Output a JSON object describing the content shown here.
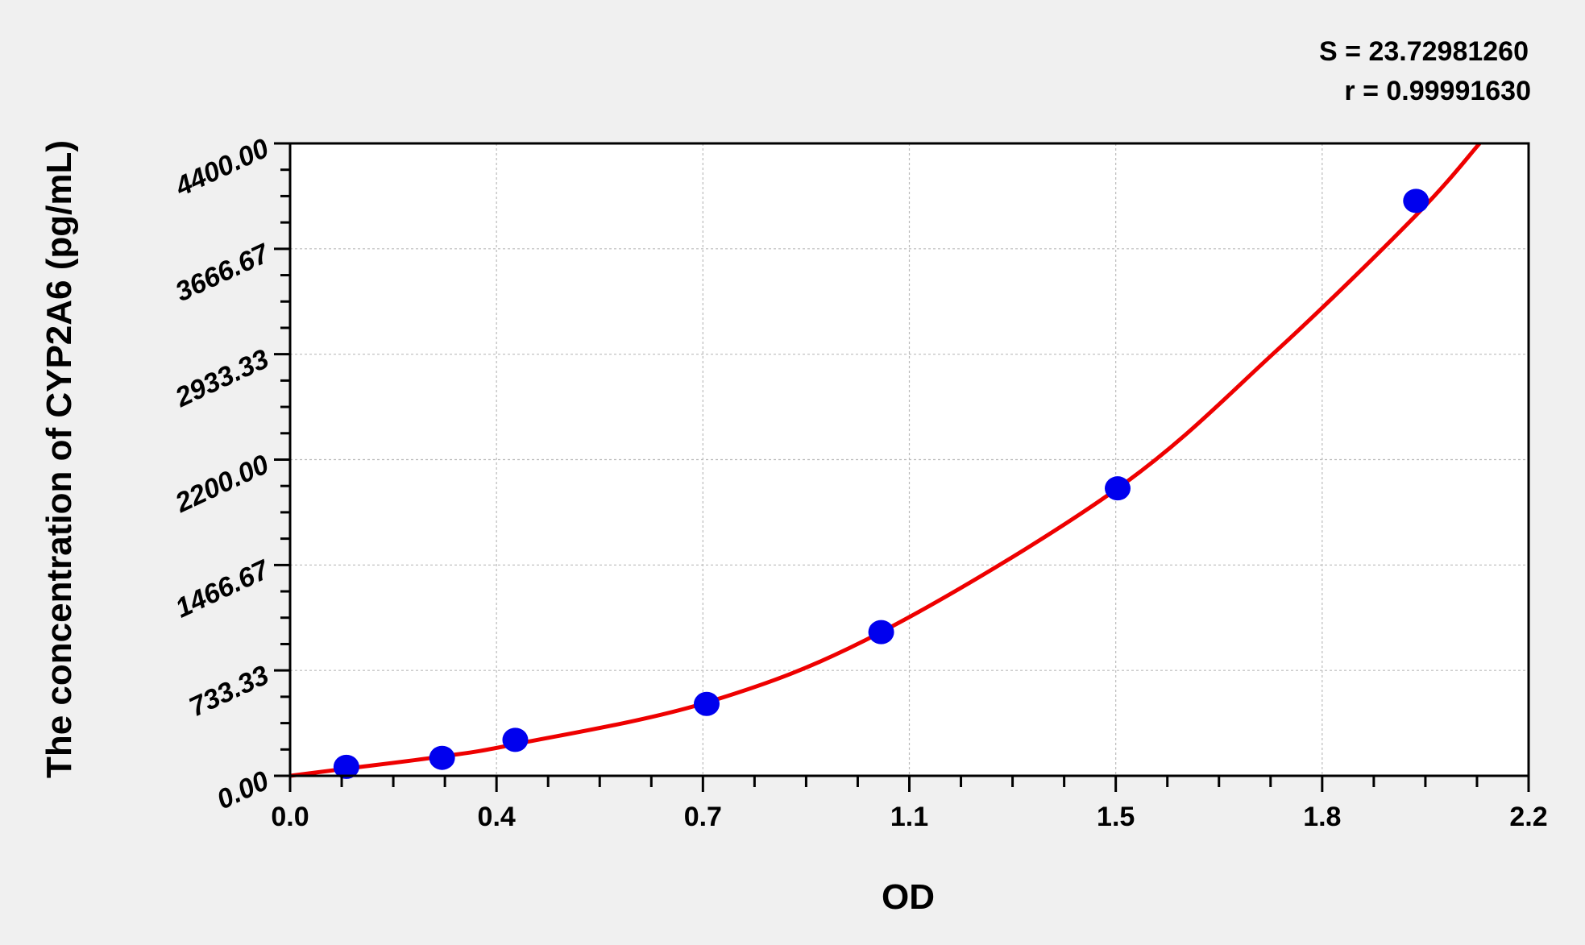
{
  "chart_data": {
    "type": "scatter",
    "xlabel": "OD",
    "ylabel": "The concentration of CYP2A6 (pg/mL)",
    "xlim": [
      0,
      2.2
    ],
    "ylim": [
      0,
      4400
    ],
    "x_tick_labels": [
      "0.0",
      "0.4",
      "0.7",
      "1.1",
      "1.5",
      "1.8",
      "2.2"
    ],
    "y_tick_labels": [
      "0.00",
      "733.33",
      "1466.67",
      "2200.00",
      "2933.33",
      "3666.67",
      "4400.00"
    ],
    "grid": true,
    "annotations": [
      "S = 23.72981260",
      "r = 0.99991630"
    ],
    "series": [
      {
        "type": "scatter",
        "color": "#0000ee",
        "x": [
          0.1,
          0.27,
          0.4,
          0.74,
          1.05,
          1.47,
          2.0
        ],
        "y": [
          62.5,
          125,
          250,
          500,
          1000,
          2000,
          4000
        ]
      }
    ],
    "fit_curve": {
      "color": "#ee0000",
      "x": [
        0.0,
        0.1,
        0.27,
        0.4,
        0.74,
        1.05,
        1.47,
        1.75,
        2.0,
        2.113
      ],
      "y": [
        0,
        50,
        135,
        220,
        510,
        1000,
        2000,
        2950,
        3900,
        4400
      ]
    }
  }
}
